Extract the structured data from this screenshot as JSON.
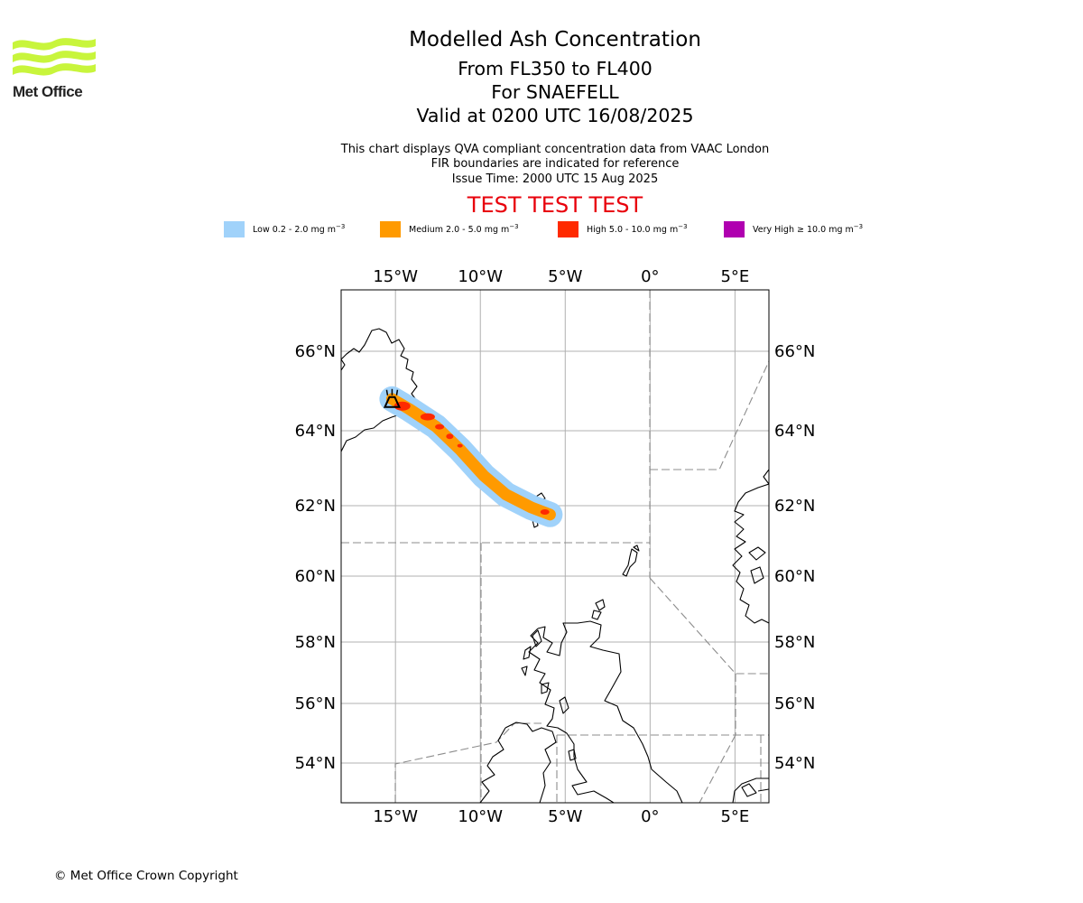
{
  "header": {
    "logo_text": "Met Office",
    "title": "Modelled Ash Concentration",
    "levels": "From FL350 to FL400",
    "volcano": "For SNAEFELL",
    "valid": "Valid at 0200 UTC 16/08/2025",
    "info_line1": "This chart displays QVA compliant concentration data from VAAC London",
    "info_line2": "FIR boundaries are indicated for reference",
    "issue_time": "Issue Time: 2000 UTC 15 Aug 2025",
    "test_banner": "TEST TEST TEST"
  },
  "legend": [
    {
      "name": "Low",
      "range": "0.2 - 2.0",
      "unit": "mg m",
      "exp": "−3",
      "color": "#a0d2fa"
    },
    {
      "name": "Medium",
      "range": "2.0 - 5.0",
      "unit": "mg m",
      "exp": "−3",
      "color": "#ff9a00"
    },
    {
      "name": "High",
      "range": "5.0 - 10.0",
      "unit": "mg m",
      "exp": "−3",
      "color": "#ff2a00"
    },
    {
      "name": "Very High",
      "range": "≥  10.0",
      "unit": "mg m",
      "exp": "−3",
      "color": "#b000b0"
    }
  ],
  "map": {
    "lon_range": [
      -18.2,
      7.0
    ],
    "lat_range": [
      52.8,
      67.5
    ],
    "lon_ticks": [
      {
        "value": -15,
        "label": "15°W"
      },
      {
        "value": -10,
        "label": "10°W"
      },
      {
        "value": -5,
        "label": "5°W"
      },
      {
        "value": 0,
        "label": "0°"
      },
      {
        "value": 5,
        "label": "5°E"
      }
    ],
    "lat_ticks": [
      {
        "value": 66,
        "label": "66°N"
      },
      {
        "value": 64,
        "label": "64°N"
      },
      {
        "value": 62,
        "label": "62°N"
      },
      {
        "value": 60,
        "label": "60°N"
      },
      {
        "value": 58,
        "label": "58°N"
      },
      {
        "value": 56,
        "label": "56°N"
      },
      {
        "value": 54,
        "label": "54°N"
      }
    ],
    "volcano": {
      "lon": -15.2,
      "lat": 64.8
    },
    "plume_axis": [
      [
        -15.2,
        64.8
      ],
      [
        -14.2,
        64.55
      ],
      [
        -12.6,
        64.1
      ],
      [
        -11.2,
        63.5
      ],
      [
        -9.8,
        62.8
      ],
      [
        -8.5,
        62.3
      ],
      [
        -7.0,
        61.95
      ],
      [
        -5.9,
        61.75
      ]
    ],
    "grid_color": "#b0b0b0",
    "coast_color": "#000000",
    "fir_color": "#8c8c8c"
  },
  "footer": {
    "copyright": "© Met Office Crown Copyright"
  }
}
